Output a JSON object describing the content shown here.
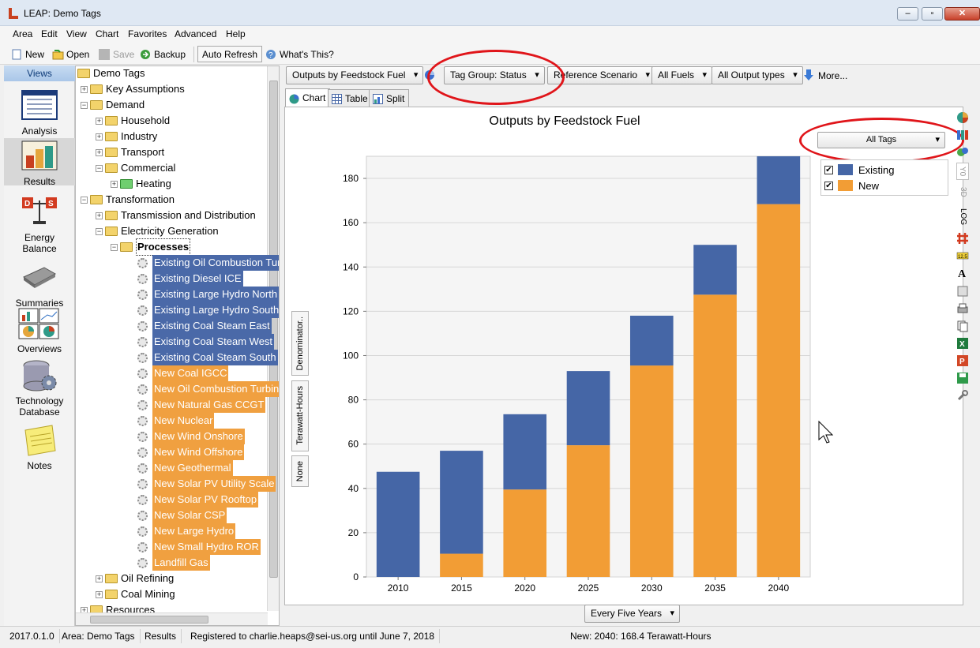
{
  "window": {
    "title": "LEAP: Demo Tags"
  },
  "menu": [
    "Area",
    "Edit",
    "View",
    "Chart",
    "Favorites",
    "Advanced",
    "Help"
  ],
  "toolbar": {
    "new": "New",
    "open": "Open",
    "save": "Save",
    "backup": "Backup",
    "auto_refresh": "Auto Refresh",
    "whats_this": "What's This?"
  },
  "views": {
    "header": "Views",
    "items": [
      "Analysis",
      "Results",
      "Energy Balance",
      "Summaries",
      "Overviews",
      "Technology Database",
      "Notes"
    ],
    "selected": "Results"
  },
  "tree": {
    "root": "Demo Tags",
    "key_assumptions": "Key Assumptions",
    "demand": "Demand",
    "household": "Household",
    "industry": "Industry",
    "transport": "Transport",
    "commercial": "Commercial",
    "heating": "Heating",
    "transformation": "Transformation",
    "tnd": "Transmission and Distribution",
    "elec_gen": "Electricity Generation",
    "processes": "Processes",
    "existing_processes": [
      "Existing Oil Combustion Turbine",
      "Existing Diesel ICE",
      "Existing Large Hydro North",
      "Existing Large Hydro South",
      "Existing Coal Steam East",
      "Existing Coal Steam West",
      "Existing Coal Steam South"
    ],
    "new_processes": [
      "New Coal IGCC",
      "New Oil Combustion Turbine",
      "New Natural Gas CCGT",
      "New Nuclear",
      "New Wind Onshore",
      "New Wind Offshore",
      "New Geothermal",
      "New Solar PV Utility Scale",
      "New Solar PV Rooftop",
      "New Solar CSP",
      "New Large Hydro",
      "New Small Hydro ROR",
      "Landfill Gas"
    ],
    "oil_refining": "Oil Refining",
    "coal_mining": "Coal Mining",
    "resources": "Resources"
  },
  "results_toolbar": {
    "chart_selector": "Outputs by Feedstock Fuel",
    "tag_group": "Tag Group: Status",
    "scenario": "Reference Scenario",
    "fuels": "All Fuels",
    "output_types": "All Output types",
    "more": "More..."
  },
  "tabs": [
    "Chart",
    "Table",
    "Split"
  ],
  "active_tab": "Chart",
  "tag_filter": "All Tags",
  "side_buttons": [
    "Denominator..",
    "Terawatt-Hours",
    "None"
  ],
  "side_toggles": [
    "Y0",
    "3D",
    "LOG"
  ],
  "time_selector": "Every Five Years",
  "chart_data": {
    "type": "bar",
    "stacked": true,
    "title": "Outputs by Feedstock Fuel",
    "categories": [
      "2010",
      "2015",
      "2020",
      "2025",
      "2030",
      "2035",
      "2040"
    ],
    "series": [
      {
        "name": "New",
        "color": "#f29d35",
        "values": [
          0,
          10.5,
          39.5,
          59.5,
          95.5,
          127.5,
          168.4
        ]
      },
      {
        "name": "Existing",
        "color": "#4566a6",
        "values": [
          47.5,
          46.5,
          34,
          33.5,
          22.5,
          22.5,
          21.6
        ]
      }
    ],
    "ylim": [
      0,
      190
    ],
    "yticks": [
      0,
      20,
      40,
      60,
      80,
      100,
      120,
      140,
      160,
      180
    ],
    "legend": [
      {
        "name": "Existing",
        "color": "#4566a6",
        "checked": true
      },
      {
        "name": "New",
        "color": "#f29d35",
        "checked": true
      }
    ],
    "grid": true
  },
  "status": {
    "version": "2017.0.1.0",
    "area": "Area: Demo Tags",
    "view": "Results",
    "registration": "Registered to charlie.heaps@sei-us.org until June 7, 2018",
    "hover_value": "New: 2040: 168.4 Terawatt-Hours"
  }
}
